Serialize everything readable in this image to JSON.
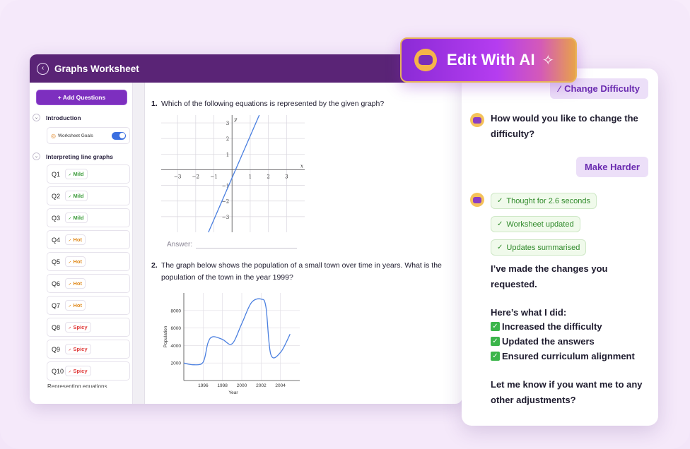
{
  "window": {
    "title": "Graphs Worksheet",
    "back_icon": "chevron-left-icon"
  },
  "sidebar": {
    "add_questions": "+ Add Questions",
    "sections": [
      {
        "label": "Introduction"
      },
      {
        "label": "Interpreting line graphs"
      }
    ],
    "goals_label": "Worksheet Goals",
    "goals_enabled": true,
    "questions": [
      {
        "id": "Q1",
        "level": "Mild"
      },
      {
        "id": "Q2",
        "level": "Mild"
      },
      {
        "id": "Q3",
        "level": "Mild"
      },
      {
        "id": "Q4",
        "level": "Hot"
      },
      {
        "id": "Q5",
        "level": "Hot"
      },
      {
        "id": "Q6",
        "level": "Hot"
      },
      {
        "id": "Q7",
        "level": "Hot"
      },
      {
        "id": "Q8",
        "level": "Spicy"
      },
      {
        "id": "Q9",
        "level": "Spicy"
      },
      {
        "id": "Q10",
        "level": "Spicy"
      }
    ],
    "next_section_cut": "Representing equations"
  },
  "worksheet": {
    "q1": {
      "num": "1.",
      "text": "Which of the following equations is represented by the given graph?",
      "answer_label": "Answer:"
    },
    "q2": {
      "num": "2.",
      "text": "The graph below shows the population of a small town over time in years. What is the population of the town in the year 1999?"
    }
  },
  "chart_data": [
    {
      "type": "line",
      "xlabel": "x",
      "ylabel": "y",
      "x_ticks": [
        "−3",
        "−2",
        "−1",
        "1",
        "2",
        "3"
      ],
      "y_ticks": [
        "3",
        "2",
        "1",
        "−1",
        "−2",
        "−3"
      ],
      "xlim": [
        -3.9,
        4
      ],
      "ylim": [
        -4,
        3.5
      ],
      "grid": true,
      "series": [
        {
          "x": [
            -1.3,
            1.5
          ],
          "y": [
            -4,
            3.5
          ]
        }
      ],
      "color": "#4a7fe0"
    },
    {
      "type": "line",
      "xlabel": "Year",
      "ylabel": "Population",
      "x_ticks": [
        "1996",
        "1998",
        "2000",
        "2002",
        "2004"
      ],
      "y_ticks": [
        "2000",
        "4000",
        "6000",
        "8000"
      ],
      "xlim": [
        1994,
        2006
      ],
      "ylim": [
        0,
        10000
      ],
      "grid": true,
      "series": [
        {
          "x": [
            1994,
            1995,
            1996,
            1996.5,
            1997,
            1998,
            1999,
            2000,
            2001,
            2002,
            2002.5,
            2003,
            2004,
            2005
          ],
          "y": [
            2000,
            1800,
            2100,
            4300,
            5000,
            4700,
            4200,
            6500,
            8900,
            9300,
            8400,
            3000,
            3200,
            5300
          ]
        }
      ],
      "color": "#4a7fe0"
    }
  ],
  "ai_banner": {
    "label": "Edit With AI",
    "icon": "robot-icon",
    "spark": "sparkles-icon"
  },
  "chat": {
    "change_difficulty": "Change Difficulty",
    "question": "How would you like to change the difficulty?",
    "reply": "Make Harder",
    "statuses": [
      "Thought for 2.6 seconds",
      "Worksheet updated",
      "Updates summarised"
    ],
    "response_intro": "I’ve made the changes you requested.",
    "did_heading": "Here’s what I did:",
    "did_items": [
      "Increased the difficulty",
      "Updated the answers",
      "Ensured curriculum alignment"
    ],
    "closing": "Let me know if you want me to any other adjustments?"
  },
  "colors": {
    "brand": "#5a2476",
    "accent": "#7d2fbf",
    "mild": "#3b9b3a",
    "hot": "#e08a1d",
    "spicy": "#e03b3b",
    "line": "#4a7fe0"
  }
}
